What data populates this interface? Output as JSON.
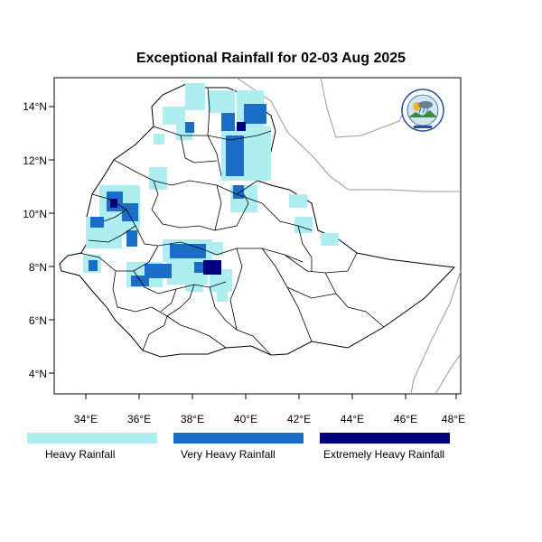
{
  "title": "Exceptional Rainfall for 02-03 Aug 2025",
  "axes": {
    "lon_ticks": [
      "34°E",
      "36°E",
      "38°E",
      "40°E",
      "42°E",
      "44°E",
      "46°E",
      "48°E"
    ],
    "lat_ticks": [
      "14°N",
      "12°N",
      "10°N",
      "8°N",
      "6°N",
      "4°N"
    ]
  },
  "legend": [
    {
      "label": "Heavy Rainfall",
      "color": "#aeeef0"
    },
    {
      "label": "Very Heavy Rainfall",
      "color": "#1a6ec8"
    },
    {
      "label": "Extremely Heavy Rainfall",
      "color": "#00007e"
    }
  ],
  "colors": {
    "heavy": "#aeeef0",
    "very_heavy": "#1a6ec8",
    "extreme": "#00007e",
    "border": "#000000",
    "neighbor": "#9a9a9a"
  },
  "logo": {
    "icon": "meteorology-agency-logo"
  }
}
